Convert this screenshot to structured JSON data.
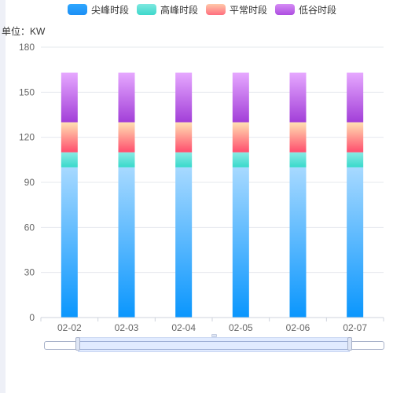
{
  "chart_data": {
    "type": "bar",
    "stacked": true,
    "unit_label": "单位：KW",
    "categories": [
      "02-02",
      "02-03",
      "02-04",
      "02-05",
      "02-06",
      "02-07"
    ],
    "series": [
      {
        "name": "尖峰时段",
        "values": [
          100,
          100,
          100,
          100,
          100,
          100
        ],
        "colors": [
          "#0a96fd",
          "#a7d9ff"
        ]
      },
      {
        "name": "高峰时段",
        "values": [
          10,
          10,
          10,
          10,
          10,
          10
        ],
        "colors": [
          "#38d9cb",
          "#8aeae4"
        ]
      },
      {
        "name": "平常时段",
        "values": [
          20,
          20,
          20,
          20,
          20,
          20
        ],
        "colors": [
          "#ff4d6d",
          "#ffe1b3"
        ]
      },
      {
        "name": "低谷时段",
        "values": [
          33,
          33,
          33,
          33,
          33,
          33
        ],
        "colors": [
          "#a23fd8",
          "#e6a8ff"
        ]
      }
    ],
    "ylim": [
      0,
      180
    ],
    "yticks": [
      "0",
      "30",
      "60",
      "90",
      "120",
      "150",
      "180"
    ],
    "grid": true,
    "legend_position": "top-center"
  }
}
